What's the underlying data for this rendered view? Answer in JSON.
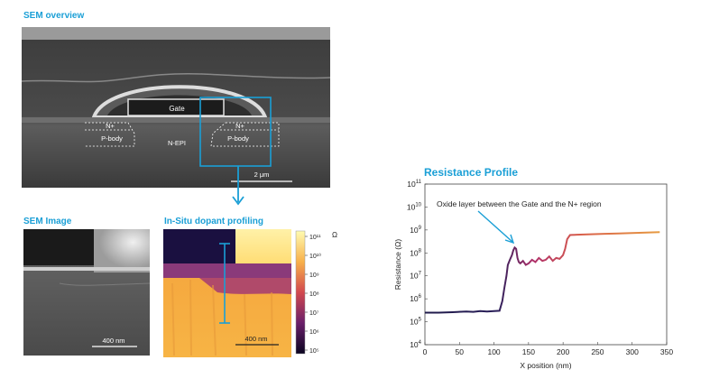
{
  "colors": {
    "accent": "#1a9fd6",
    "line_low": "#1f1a4a",
    "line_mid": "#b0306a",
    "line_high": "#e58a3a"
  },
  "sem_overview": {
    "title": "SEM overview",
    "gate_label": "Gate",
    "n_plus_left": "N+",
    "n_plus_right": "N+",
    "p_body_left": "P-body",
    "p_body_right": "P-body",
    "n_epi": "N-EPI",
    "scale_bar": "2 μm"
  },
  "sem_image": {
    "title": "SEM Image",
    "scale_bar": "400 nm"
  },
  "dopant_profiling": {
    "title": "In-Situ dopant profiling",
    "scale_bar": "400 nm",
    "colorbar_unit": "Ω",
    "colorbar_ticks": [
      "10¹¹",
      "10¹⁰",
      "10⁹",
      "10⁸",
      "10⁷",
      "10⁶",
      "10⁵"
    ]
  },
  "chart_data": {
    "type": "line",
    "title": "Resistance Profile",
    "ylabel": "Resistance (Ω)",
    "xlabel": "X position (nm)",
    "annotation": "Oxide layer between the Gate and the N+ region",
    "y_log_scale": true,
    "xlim": [
      0,
      350
    ],
    "ylim_exponent": [
      4,
      11
    ],
    "x_ticks": [
      "0",
      "50",
      "100",
      "150",
      "200",
      "250",
      "300",
      "350"
    ],
    "y_tick_exponents": [
      "4",
      "5",
      "6",
      "7",
      "8",
      "9",
      "10",
      "11"
    ],
    "series": [
      {
        "x": [
          0,
          20,
          40,
          60,
          70,
          80,
          90,
          100,
          108,
          112,
          115,
          118,
          120,
          123,
          126,
          128,
          130,
          132,
          134,
          136,
          138,
          142,
          146,
          150,
          155,
          160,
          165,
          170,
          175,
          180,
          185,
          190,
          195,
          200,
          203,
          206,
          210,
          220,
          240,
          260,
          280,
          300,
          320,
          340
        ],
        "y": [
          250000,
          250000,
          260000,
          280000,
          270000,
          290000,
          280000,
          290000,
          300000,
          800000,
          3000000,
          10000000,
          30000000,
          50000000,
          80000000,
          130000000,
          170000000,
          150000000,
          60000000,
          40000000,
          35000000,
          45000000,
          30000000,
          35000000,
          50000000,
          40000000,
          60000000,
          45000000,
          50000000,
          70000000,
          45000000,
          60000000,
          55000000,
          80000000,
          150000000,
          400000000,
          600000000,
          620000000,
          650000000,
          680000000,
          700000000,
          740000000,
          770000000,
          800000000
        ]
      }
    ]
  }
}
